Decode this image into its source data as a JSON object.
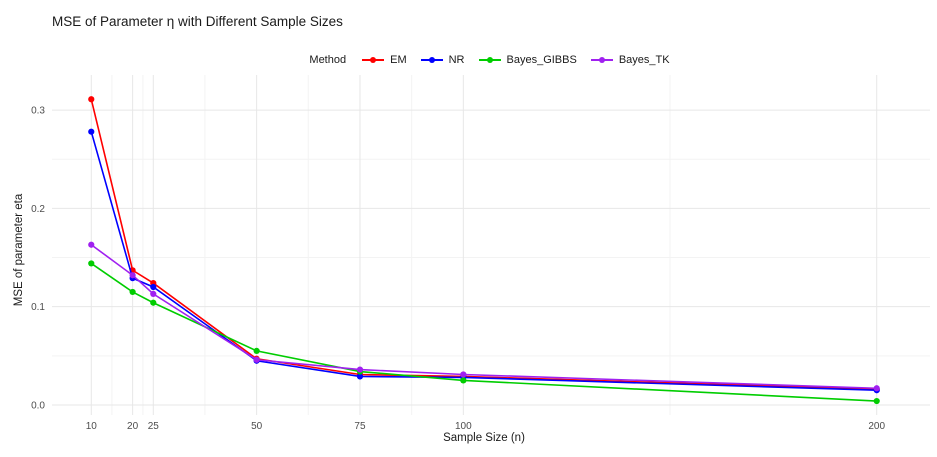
{
  "chart_data": {
    "type": "line",
    "title": "MSE of Parameter η with Different Sample Sizes",
    "xlabel": "Sample Size (n)",
    "ylabel": "MSE of parameter eta",
    "legend_title": "Method",
    "legend_position": "top",
    "grid": true,
    "background": "#ffffff",
    "grid_major_color": "#e7e7e7",
    "grid_minor_color": "#f3f3f3",
    "tick_label_color": "#4d4d4d",
    "axis_title_color": "#1a1a1a",
    "x": [
      10,
      20,
      25,
      50,
      75,
      100,
      200
    ],
    "x_tick_labels": [
      "10",
      "20",
      "25",
      "50",
      "75",
      "100",
      "200"
    ],
    "y_ticks": [
      0.0,
      0.1,
      0.2,
      0.3
    ],
    "y_tick_labels": [
      "0.0",
      "0.1",
      "0.2",
      "0.3"
    ],
    "y_minor_ticks": [
      0.05,
      0.15,
      0.25
    ],
    "x_minor_ticks": [
      15,
      22.5,
      37.5,
      62.5,
      87.5,
      150
    ],
    "xlim": [
      0.5,
      209.5
    ],
    "ylim": [
      -0.0102,
      0.3255
    ],
    "series": [
      {
        "name": "EM",
        "color": "#ff0000",
        "values": [
          0.311,
          0.137,
          0.124,
          0.047,
          0.031,
          0.029,
          0.016
        ]
      },
      {
        "name": "NR",
        "color": "#0000ff",
        "values": [
          0.278,
          0.129,
          0.12,
          0.045,
          0.029,
          0.028,
          0.015
        ]
      },
      {
        "name": "Bayes_GIBBS",
        "color": "#00cd00",
        "values": [
          0.144,
          0.115,
          0.104,
          0.055,
          0.034,
          0.025,
          0.004
        ]
      },
      {
        "name": "Bayes_TK",
        "color": "#a020f0",
        "values": [
          0.163,
          0.132,
          0.113,
          0.046,
          0.036,
          0.031,
          0.017
        ]
      }
    ]
  }
}
